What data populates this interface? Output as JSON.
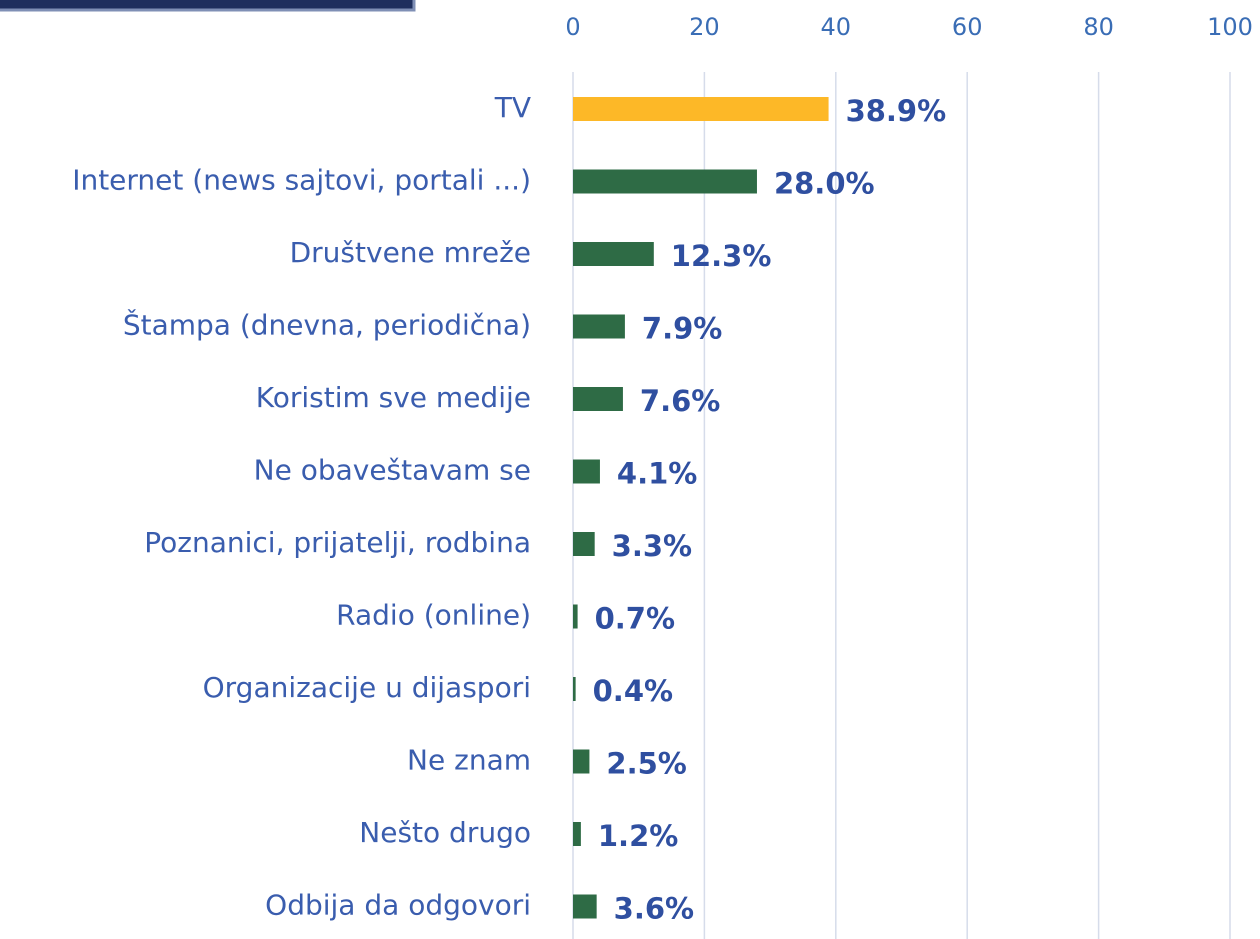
{
  "chart_data": {
    "type": "barh",
    "categories": [
      "TV",
      "Internet (news sajtovi, portali ...)",
      "Društvene mreže",
      "Štampa (dnevna, periodična)",
      "Koristim sve medije",
      "Ne obaveštavam se",
      "Poznanici, prijatelji, rodbina",
      "Radio (online)",
      "Organizacije u dijaspori",
      "Ne znam",
      "Nešto drugo",
      "Odbija da odgovori"
    ],
    "values": [
      38.9,
      28.0,
      12.3,
      7.9,
      7.6,
      4.1,
      3.3,
      0.7,
      0.4,
      2.5,
      1.2,
      3.6
    ],
    "value_labels": [
      "38.9%",
      "28.0%",
      "12.3%",
      "7.9%",
      "7.6%",
      "4.1%",
      "3.3%",
      "0.7%",
      "0.4%",
      "2.5%",
      "1.2%",
      "3.6%"
    ],
    "colors": [
      "#fdb827",
      "#2e6b45",
      "#2e6b45",
      "#2e6b45",
      "#2e6b45",
      "#2e6b45",
      "#2e6b45",
      "#2e6b45",
      "#2e6b45",
      "#2e6b45",
      "#2e6b45",
      "#2e6b45"
    ],
    "xlim": [
      0,
      100
    ],
    "xticks": [
      0,
      20,
      40,
      60,
      80,
      100
    ],
    "grid": true
  }
}
